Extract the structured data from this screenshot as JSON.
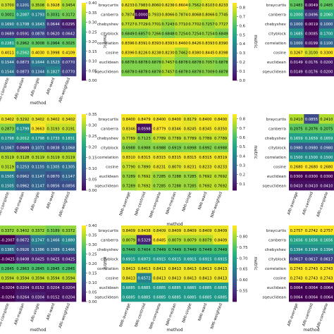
{
  "chart_data": [
    {
      "type": "heatmap",
      "ylabel": "metric",
      "xlabel": "method",
      "rows": [
        "",
        "",
        "",
        "",
        "",
        "",
        "",
        ""
      ],
      "columns": [
        "ARI-complete",
        "ARI-median",
        "ARI-single",
        "ARI-ward",
        "ARI-weighted"
      ],
      "values": [
        [
          0.37,
          0.1201,
          0.3508,
          0.3928,
          0.3454
        ],
        [
          0.3001,
          0.2087,
          0.1793,
          0.3031,
          0.3172
        ],
        [
          0.169,
          0.1708,
          0.1643,
          0.0644,
          0.0295
        ],
        [
          0.0689,
          0.0591,
          0.0878,
          0.062,
          0.0642
        ],
        [
          0.2281,
          0.2962,
          0.3008,
          0.2964,
          0.3025
        ],
        [
          0.4011,
          0.2562,
          0.403,
          0.3998,
          0.4109
        ],
        [
          0.1544,
          0.0873,
          0.1644,
          0.1523,
          0.077
        ],
        [
          0.1544,
          0.0873,
          0.1344,
          0.1827,
          0.077
        ]
      ],
      "colorbar": {
        "min": 0.0,
        "max": 0.4,
        "ticks": [
          "0.00",
          "0.05",
          "0.10",
          "0.15",
          "0.20",
          "0.25",
          "0.30",
          "0.35",
          "0.40"
        ]
      }
    },
    {
      "type": "heatmap",
      "ylabel": "metric",
      "xlabel": "",
      "rows": [
        "braycurtis",
        "canberra",
        "chebyshev",
        "cityblock",
        "correlation",
        "cosine",
        "euclidean",
        "sqeuclidean"
      ],
      "columns": [
        "",
        "",
        "",
        "",
        "",
        "",
        "",
        ""
      ],
      "values": [
        [
          0.8233,
          0.7983,
          0.806,
          0.8236,
          0.8604,
          0.7562,
          0.8103,
          0.8233
        ],
        [
          0.7874,
          0.0,
          0.7933,
          0.8066,
          0.7874,
          0.8068,
          0.8066,
          0.7745
        ],
        [
          0.7727,
          0.7729,
          0.7701,
          0.7243,
          0.771,
          0.7702,
          0.7257,
          0.7727
        ],
        [
          0.6849,
          0.6857,
          0.7266,
          0.6848,
          0.7254,
          0.7254,
          0.7254,
          0.6849
        ],
        [
          0.8396,
          0.8391,
          0.8393,
          0.8393,
          0.846,
          0.8426,
          0.8393,
          0.839
        ],
        [
          0.8396,
          0.8226,
          0.8238,
          0.823,
          0.7462,
          0.838,
          0.8445,
          0.8398
        ],
        [
          0.6878,
          0.6878,
          0.6878,
          0.7457,
          0.6878,
          0.6878,
          0.7057,
          0.6878
        ],
        [
          0.6878,
          0.6878,
          0.6878,
          0.7457,
          0.6878,
          0.6878,
          0.7009,
          0.6878
        ]
      ],
      "colorbar": {
        "min": 0.0,
        "max": 0.85,
        "ticks": [
          "0.0",
          "0.1",
          "0.2",
          "0.3",
          "0.4",
          "0.5",
          "0.6",
          "0.7",
          "0.8"
        ]
      }
    },
    {
      "type": "heatmap",
      "ylabel": "",
      "xlabel": "",
      "rows": [
        "braycurtis",
        "canberra",
        "chebyshev",
        "cityblock",
        "correlation",
        "cosine",
        "euclidean",
        "sqeuclidean"
      ],
      "columns": [],
      "values": [
        [
          0.2483,
          0.0049,
          0.2485
        ],
        [
          0.2,
          0.0496,
          0.206
        ],
        [
          0.1,
          0.0019,
          0.1
        ],
        [
          0.1685,
          0.0085,
          0.17
        ],
        [
          0.1,
          0.0199,
          0.11
        ],
        [
          0.3267,
          0.31,
          0.33
        ],
        [
          0.0149,
          0.0176,
          0.02
        ],
        [
          0.0149,
          0.0176,
          0.02
        ]
      ]
    },
    {
      "type": "heatmap",
      "ylabel": "",
      "xlabel": "",
      "rows": [
        "",
        "",
        "",
        "",
        "",
        "",
        "",
        ""
      ],
      "columns": [
        "ARI-complete",
        "ARI-median",
        "ARI-single",
        "ARI-ward",
        "ARI-weighted"
      ],
      "values": [
        [
          0.3402,
          0.3292,
          0.3402,
          0.3402,
          0.3402
        ],
        [
          0.2873,
          0.1799,
          0.3663,
          0.3193,
          0.3191
        ],
        [
          0.1798,
          0.2012,
          0.1798,
          0.1733,
          0.1831
        ],
        [
          0.1067,
          0.0689,
          0.1071,
          0.0838,
          0.1068
        ],
        [
          0.3119,
          0.3128,
          0.3119,
          0.3119,
          0.3119
        ],
        [
          0.3119,
          0.1253,
          0.1155,
          0.1305,
          0.1305
        ],
        [
          0.1505,
          0.0962,
          0.1147,
          0.087,
          0.1147
        ],
        [
          0.1505,
          0.0962,
          0.1147,
          0.0856,
          0.0856
        ]
      ],
      "colorbar": {
        "min": 0.0,
        "max": 0.35,
        "ticks": [
          "0.00",
          "0.05",
          "0.10",
          "0.15",
          "0.20",
          "0.25",
          "0.30",
          "0.35"
        ]
      }
    },
    {
      "type": "heatmap",
      "ylabel": "metric",
      "xlabel": "method",
      "rows": [
        "braycurtis",
        "canberra",
        "chebyshev",
        "cityblock",
        "correlation",
        "cosine",
        "euclidean",
        "sqeuclidean"
      ],
      "columns": [
        "NMI-average",
        "NMI-centroid",
        "NMI-complete",
        "NMI-median",
        "NMI-single",
        "NMI-ward",
        "NMI-weighted"
      ],
      "values": [
        [
          0.84,
          0.8479,
          0.84,
          0.84,
          0.8179,
          0.84,
          0.84
        ],
        [
          0.8346,
          0.0598,
          0.8779,
          0.8346,
          0.8245,
          0.8345,
          0.835
        ],
        [
          0.7789,
          0.7123,
          0.7789,
          0.7789,
          0.7789,
          0.7789,
          0.7789
        ],
        [
          0.6988,
          0.6988,
          0.6988,
          0.6919,
          0.6998,
          0.6992,
          0.6988
        ],
        [
          0.831,
          0.8315,
          0.8315,
          0.8315,
          0.8315,
          0.8315,
          0.8319
        ],
        [
          0.779,
          0.789,
          0.8231,
          0.807,
          0.8231,
          0.8233,
          0.8233
        ],
        [
          0.7289,
          0.7692,
          0.7285,
          0.7288,
          0.7285,
          0.7692,
          0.7692
        ],
        [
          0.7289,
          0.7692,
          0.7285,
          0.7288,
          0.7285,
          0.7692,
          0.7692
        ]
      ],
      "colorbar": {
        "min": 0.03,
        "max": 0.85,
        "ticks": [
          "0.1",
          "0.2",
          "0.3",
          "0.4",
          "0.5",
          "0.6",
          "0.7",
          "0.8"
        ]
      }
    },
    {
      "type": "heatmap",
      "ylabel": "metric",
      "xlabel": "",
      "rows": [
        "braycurtis",
        "canberra",
        "chebyshev",
        "cityblock",
        "correlation",
        "cosine",
        "euclidean",
        "sqeuclidean"
      ],
      "columns": [
        "ARI-average",
        "ARI-centroid",
        "ARI-complete"
      ],
      "values": [
        [
          0.241,
          0.0855,
          0.241
        ],
        [
          0.2075,
          0.2076,
          0.2075
        ],
        [
          0.1659,
          0.1659,
          0.1659
        ],
        [
          0.098,
          0.098,
          0.098
        ],
        [
          0.15,
          0.15,
          0.15
        ],
        [
          0.268,
          0.268,
          0.268
        ],
        [
          0.03,
          0.03,
          0.03
        ],
        [
          0.041,
          0.041,
          0.041
        ]
      ]
    },
    {
      "type": "heatmap",
      "ylabel": "metric",
      "xlabel": "method",
      "rows": [
        "",
        "",
        "",
        "",
        "",
        "",
        "",
        ""
      ],
      "columns": [
        "ARI-complete",
        "ARI-median",
        "ARI-single",
        "ARI-ward",
        "ARI-weighted"
      ],
      "values": [
        [
          0.3372,
          0.3402,
          0.3372,
          0.3189,
          0.3372
        ],
        [
          -0.2007,
          0.0672,
          0.1747,
          0.1466,
          0.188
        ],
        [
          0.1385,
          0.0926,
          0.1386,
          0.1389,
          0.1466
        ],
        [
          -0.0425,
          0.0408,
          0.0425,
          0.0425,
          0.0425
        ],
        [
          0.2845,
          0.2863,
          0.2845,
          0.2845,
          0.2845
        ],
        [
          0.3594,
          0.3594,
          0.3594,
          0.3594,
          0.3594
        ],
        [
          -0.0204,
          0.0204,
          0.0152,
          0.0204,
          0.0204
        ],
        [
          -0.0204,
          0.0264,
          0.0304,
          0.0152,
          0.0204
        ]
      ],
      "colorbar": {
        "min": 0.0,
        "max": 0.4,
        "ticks": [
          "0.00",
          "0.05",
          "0.10",
          "0.15",
          "0.20",
          "0.25",
          "0.30",
          "0.35",
          "0.40"
        ]
      }
    },
    {
      "type": "heatmap",
      "ylabel": "metric",
      "xlabel": "method",
      "rows": [
        "braycurtis",
        "canberra",
        "chebyshev",
        "cityblock",
        "correlation",
        "cosine",
        "euclidean",
        "sqeuclidean"
      ],
      "columns": [
        "NMI-average",
        "NMI-centroid",
        "NMI-complete",
        "NMI-median",
        "NMI-single",
        "NMI-ward",
        "NMI-weighted"
      ],
      "values": [
        [
          0.8409,
          0.8438,
          0.8409,
          0.8409,
          0.8409,
          0.8409,
          0.8409
        ],
        [
          0.8079,
          0.5329,
          0.8485,
          0.8079,
          0.8079,
          0.8079,
          0.8409
        ],
        [
          0.7449,
          0.7404,
          0.7449,
          0.7449,
          0.7449,
          0.7449,
          0.7449
        ],
        [
          0.6915,
          0.6973,
          0.6915,
          0.6915,
          0.6915,
          0.6915,
          0.6915
        ],
        [
          0.8413,
          0.8413,
          0.8413,
          0.8413,
          0.8413,
          0.8413,
          0.8413
        ],
        [
          0.8413,
          0.6572,
          0.8413,
          0.8413,
          0.8413,
          0.8413,
          0.8413
        ],
        [
          0.6885,
          0.6885,
          0.6885,
          0.6885,
          0.6885,
          0.6885,
          0.6885
        ],
        [
          0.6885,
          0.6885,
          0.6885,
          0.6885,
          0.6885,
          0.6885,
          0.6885
        ]
      ],
      "colorbar": {
        "min": 0.5,
        "max": 0.85,
        "ticks": [
          "0.55",
          "0.60",
          "0.65",
          "0.70",
          "0.75",
          "0.80"
        ]
      }
    },
    {
      "type": "heatmap",
      "ylabel": "metric",
      "xlabel": "method",
      "rows": [
        "braycurtis",
        "canberra",
        "chebyshev",
        "cityblock",
        "correlation",
        "cosine",
        "euclidean",
        "sqeuclidean"
      ],
      "columns": [
        "ARI-average",
        "ARI-centroid",
        "ARI-complete"
      ],
      "values": [
        [
          0.2757,
          0.2742,
          0.2757
        ],
        [
          0.1656,
          0.1656,
          0.1656
        ],
        [
          0.1394,
          0.1394,
          0.1394
        ],
        [
          0.0617,
          0.0617,
          0.0617
        ],
        [
          0.2743,
          0.2743,
          0.2743
        ],
        [
          0.2743,
          0.2743,
          0.2743
        ],
        [
          0.0064,
          0.0064,
          0.0064
        ],
        [
          0.0064,
          0.0064,
          0.0064
        ]
      ]
    }
  ]
}
